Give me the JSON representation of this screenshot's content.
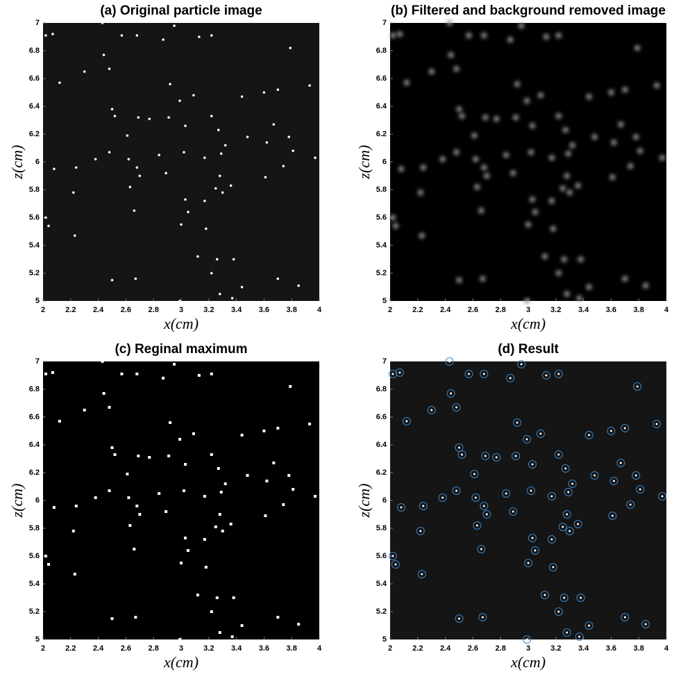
{
  "chart_data": [
    {
      "type": "scatter",
      "marker": "dot",
      "title": "(a) Original particle image",
      "x_label": "x(cm)",
      "y_label": "z(cm)",
      "background": "#151515",
      "color": "#ffffff",
      "xlim": [
        2,
        4
      ],
      "ylim": [
        5,
        7
      ],
      "xticks": [
        2,
        2.2,
        2.4,
        2.6,
        2.8,
        3,
        3.2,
        3.4,
        3.6,
        3.8,
        4
      ],
      "yticks": [
        5,
        5.2,
        5.4,
        5.6,
        5.8,
        6,
        6.2,
        6.4,
        6.6,
        6.8,
        7
      ],
      "x": [
        2.02,
        2.07,
        2.12,
        2.22,
        2.02,
        2.04,
        2.08,
        2.23,
        2.24,
        2.3,
        2.38,
        2.43,
        2.44,
        2.48,
        2.5,
        2.52,
        2.48,
        2.5,
        2.57,
        2.61,
        2.62,
        2.63,
        2.66,
        2.68,
        2.69,
        2.68,
        2.7,
        2.67,
        2.77,
        2.84,
        2.87,
        2.89,
        2.91,
        2.92,
        2.95,
        2.99,
        3,
        2.99,
        3.03,
        3.02,
        3.03,
        3.05,
        3.09,
        3.12,
        3.13,
        3.17,
        3.17,
        3.18,
        3.22,
        3.22,
        3.22,
        3.25,
        3.26,
        3.27,
        3.28,
        3.28,
        3.3,
        3.29,
        3.32,
        3.36,
        3.37,
        3.38,
        3.44,
        3.44,
        3.48,
        3.6,
        3.61,
        3.62,
        3.67,
        3.7,
        3.7,
        3.74,
        3.78,
        3.79,
        3.81,
        3.85,
        3.93,
        3.97
      ],
      "y": [
        6.91,
        6.92,
        6.57,
        5.78,
        5.6,
        5.54,
        5.95,
        5.47,
        5.96,
        6.65,
        6.02,
        7,
        6.77,
        6.67,
        6.38,
        6.33,
        6.07,
        5.15,
        6.91,
        6.19,
        6.02,
        5.82,
        5.65,
        5.96,
        6.32,
        6.91,
        5.9,
        5.16,
        6.31,
        6.05,
        6.88,
        5.92,
        6.32,
        6.56,
        6.98,
        6.44,
        5.55,
        5,
        6.26,
        6.07,
        5.73,
        5.64,
        6.48,
        5.32,
        6.9,
        6.03,
        5.72,
        5.52,
        6.33,
        6.91,
        5.2,
        5.81,
        5.3,
        6.23,
        5.9,
        5.05,
        5.78,
        6.06,
        6.12,
        5.83,
        5.02,
        5.3,
        6.47,
        5.1,
        6.18,
        6.5,
        5.89,
        6.14,
        6.27,
        6.52,
        5.16,
        5.97,
        6.18,
        6.82,
        6.08,
        5.11,
        6.55,
        6.03
      ]
    },
    {
      "type": "scatter",
      "marker": "blur",
      "title": "(b) Filtered and background removed image",
      "x_label": "x(cm)",
      "y_label": "z(cm)",
      "background": "#000000",
      "color": "#9a9a9a",
      "xlim": [
        2,
        4
      ],
      "ylim": [
        5,
        7
      ],
      "xticks": [
        2,
        2.2,
        2.4,
        2.6,
        2.8,
        3,
        3.2,
        3.4,
        3.6,
        3.8,
        4
      ],
      "yticks": [
        5,
        5.2,
        5.4,
        5.6,
        5.8,
        6,
        6.2,
        6.4,
        6.6,
        6.8,
        7
      ],
      "x": [
        2.02,
        2.07,
        2.12,
        2.22,
        2.02,
        2.04,
        2.08,
        2.23,
        2.24,
        2.3,
        2.38,
        2.43,
        2.44,
        2.48,
        2.5,
        2.52,
        2.48,
        2.5,
        2.57,
        2.61,
        2.62,
        2.63,
        2.66,
        2.68,
        2.69,
        2.68,
        2.7,
        2.67,
        2.77,
        2.84,
        2.87,
        2.89,
        2.91,
        2.92,
        2.95,
        2.99,
        3,
        2.99,
        3.03,
        3.02,
        3.03,
        3.05,
        3.09,
        3.12,
        3.13,
        3.17,
        3.17,
        3.18,
        3.22,
        3.22,
        3.22,
        3.25,
        3.26,
        3.27,
        3.28,
        3.28,
        3.3,
        3.29,
        3.32,
        3.36,
        3.37,
        3.38,
        3.44,
        3.44,
        3.48,
        3.6,
        3.61,
        3.62,
        3.67,
        3.7,
        3.7,
        3.74,
        3.78,
        3.79,
        3.81,
        3.85,
        3.93,
        3.97
      ],
      "y": [
        6.91,
        6.92,
        6.57,
        5.78,
        5.6,
        5.54,
        5.95,
        5.47,
        5.96,
        6.65,
        6.02,
        7,
        6.77,
        6.67,
        6.38,
        6.33,
        6.07,
        5.15,
        6.91,
        6.19,
        6.02,
        5.82,
        5.65,
        5.96,
        6.32,
        6.91,
        5.9,
        5.16,
        6.31,
        6.05,
        6.88,
        5.92,
        6.32,
        6.56,
        6.98,
        6.44,
        5.55,
        5,
        6.26,
        6.07,
        5.73,
        5.64,
        6.48,
        5.32,
        6.9,
        6.03,
        5.72,
        5.52,
        6.33,
        6.91,
        5.2,
        5.81,
        5.3,
        6.23,
        5.9,
        5.05,
        5.78,
        6.06,
        6.12,
        5.83,
        5.02,
        5.3,
        6.47,
        5.1,
        6.18,
        6.5,
        5.89,
        6.14,
        6.27,
        6.52,
        5.16,
        5.97,
        6.18,
        6.82,
        6.08,
        5.11,
        6.55,
        6.03
      ]
    },
    {
      "type": "scatter",
      "marker": "square",
      "title": "(c) Reginal maximum",
      "x_label": "x(cm)",
      "y_label": "z(cm)",
      "background": "#000000",
      "color": "#ffffff",
      "xlim": [
        2,
        4
      ],
      "ylim": [
        5,
        7
      ],
      "xticks": [
        2,
        2.2,
        2.4,
        2.6,
        2.8,
        3,
        3.2,
        3.4,
        3.6,
        3.8,
        4
      ],
      "yticks": [
        5,
        5.2,
        5.4,
        5.6,
        5.8,
        6,
        6.2,
        6.4,
        6.6,
        6.8,
        7
      ],
      "x": [
        2.02,
        2.07,
        2.12,
        2.22,
        2.02,
        2.04,
        2.08,
        2.23,
        2.24,
        2.3,
        2.38,
        2.43,
        2.44,
        2.48,
        2.5,
        2.52,
        2.48,
        2.5,
        2.57,
        2.61,
        2.62,
        2.63,
        2.66,
        2.68,
        2.69,
        2.68,
        2.7,
        2.67,
        2.77,
        2.84,
        2.87,
        2.89,
        2.91,
        2.92,
        2.95,
        2.99,
        3,
        2.99,
        3.03,
        3.02,
        3.03,
        3.05,
        3.09,
        3.12,
        3.13,
        3.17,
        3.17,
        3.18,
        3.22,
        3.22,
        3.22,
        3.25,
        3.26,
        3.27,
        3.28,
        3.28,
        3.3,
        3.29,
        3.32,
        3.36,
        3.37,
        3.38,
        3.44,
        3.44,
        3.48,
        3.6,
        3.61,
        3.62,
        3.67,
        3.7,
        3.7,
        3.74,
        3.78,
        3.79,
        3.81,
        3.85,
        3.93,
        3.97
      ],
      "y": [
        6.91,
        6.92,
        6.57,
        5.78,
        5.6,
        5.54,
        5.95,
        5.47,
        5.96,
        6.65,
        6.02,
        7,
        6.77,
        6.67,
        6.38,
        6.33,
        6.07,
        5.15,
        6.91,
        6.19,
        6.02,
        5.82,
        5.65,
        5.96,
        6.32,
        6.91,
        5.9,
        5.16,
        6.31,
        6.05,
        6.88,
        5.92,
        6.32,
        6.56,
        6.98,
        6.44,
        5.55,
        5,
        6.26,
        6.07,
        5.73,
        5.64,
        6.48,
        5.32,
        6.9,
        6.03,
        5.72,
        5.52,
        6.33,
        6.91,
        5.2,
        5.81,
        5.3,
        6.23,
        5.9,
        5.05,
        5.78,
        6.06,
        6.12,
        5.83,
        5.02,
        5.3,
        6.47,
        5.1,
        6.18,
        6.5,
        5.89,
        6.14,
        6.27,
        6.52,
        5.16,
        5.97,
        6.18,
        6.82,
        6.08,
        5.11,
        6.55,
        6.03
      ]
    },
    {
      "type": "scatter",
      "marker": "circle",
      "title": "(d) Result",
      "x_label": "x(cm)",
      "y_label": "z(cm)",
      "background": "#151515",
      "color": "#3a86c8",
      "xlim": [
        2,
        4
      ],
      "ylim": [
        5,
        7
      ],
      "xticks": [
        2,
        2.2,
        2.4,
        2.6,
        2.8,
        3,
        3.2,
        3.4,
        3.6,
        3.8,
        4
      ],
      "yticks": [
        5,
        5.2,
        5.4,
        5.6,
        5.8,
        6,
        6.2,
        6.4,
        6.6,
        6.8,
        7
      ],
      "x": [
        2.02,
        2.07,
        2.12,
        2.22,
        2.02,
        2.04,
        2.08,
        2.23,
        2.24,
        2.3,
        2.38,
        2.43,
        2.44,
        2.48,
        2.5,
        2.52,
        2.48,
        2.5,
        2.57,
        2.61,
        2.62,
        2.63,
        2.66,
        2.68,
        2.69,
        2.68,
        2.7,
        2.67,
        2.77,
        2.84,
        2.87,
        2.89,
        2.91,
        2.92,
        2.95,
        2.99,
        3,
        2.99,
        3.03,
        3.02,
        3.03,
        3.05,
        3.09,
        3.12,
        3.13,
        3.17,
        3.17,
        3.18,
        3.22,
        3.22,
        3.22,
        3.25,
        3.26,
        3.27,
        3.28,
        3.28,
        3.3,
        3.29,
        3.32,
        3.36,
        3.37,
        3.38,
        3.44,
        3.44,
        3.48,
        3.6,
        3.61,
        3.62,
        3.67,
        3.7,
        3.7,
        3.74,
        3.78,
        3.79,
        3.81,
        3.85,
        3.93,
        3.97
      ],
      "y": [
        6.91,
        6.92,
        6.57,
        5.78,
        5.6,
        5.54,
        5.95,
        5.47,
        5.96,
        6.65,
        6.02,
        7,
        6.77,
        6.67,
        6.38,
        6.33,
        6.07,
        5.15,
        6.91,
        6.19,
        6.02,
        5.82,
        5.65,
        5.96,
        6.32,
        6.91,
        5.9,
        5.16,
        6.31,
        6.05,
        6.88,
        5.92,
        6.32,
        6.56,
        6.98,
        6.44,
        5.55,
        5,
        6.26,
        6.07,
        5.73,
        5.64,
        6.48,
        5.32,
        6.9,
        6.03,
        5.72,
        5.52,
        6.33,
        6.91,
        5.2,
        5.81,
        5.3,
        6.23,
        5.9,
        5.05,
        5.78,
        6.06,
        6.12,
        5.83,
        5.02,
        5.3,
        6.47,
        5.1,
        6.18,
        6.5,
        5.89,
        6.14,
        6.27,
        6.52,
        5.16,
        5.97,
        6.18,
        6.82,
        6.08,
        5.11,
        6.55,
        6.03
      ]
    }
  ]
}
